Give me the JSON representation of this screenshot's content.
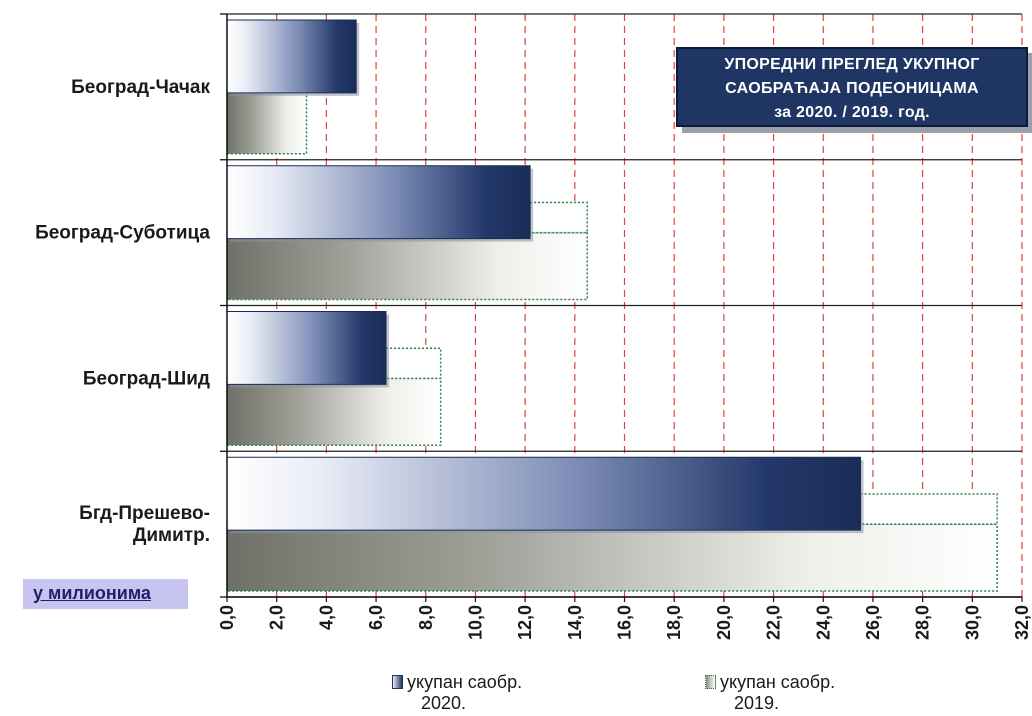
{
  "chart_data": {
    "type": "bar",
    "orientation": "horizontal",
    "title_lines": [
      "УПОРЕДНИ ПРЕГЛЕД УКУПНОГ",
      "САОБРАЋАЈА ПОДЕОНИЦАМА",
      "за 2020. / 2019. год."
    ],
    "unit_label": "у милионима",
    "categories": [
      "Београд-Чачак",
      "Београд-Суботица",
      "Београд-Шид",
      "Бгд-Прешево-Димитр."
    ],
    "series": [
      {
        "name": "укупан саобр. 2020.",
        "values": [
          5.2,
          12.2,
          6.4,
          25.5
        ],
        "color": "#1f3563"
      },
      {
        "name": "укупан саобр. 2019.",
        "values": [
          3.2,
          14.5,
          8.6,
          31.0
        ],
        "color": "#8a8c84"
      }
    ],
    "xlim": [
      0,
      32
    ],
    "x_ticks": [
      "0,0",
      "2,0",
      "4,0",
      "6,0",
      "8,0",
      "10,0",
      "12,0",
      "14,0",
      "16,0",
      "18,0",
      "20,0",
      "22,0",
      "24,0",
      "26,0",
      "28,0",
      "30,0",
      "32,0"
    ],
    "grid": true,
    "grid_color": "#e04040",
    "legend_position": "bottom"
  },
  "legend": {
    "item_2020": {
      "line1": "укупан саобр.",
      "line2": "2020."
    },
    "item_2019": {
      "line1": "укупан саобр.",
      "line2": "2019."
    }
  }
}
